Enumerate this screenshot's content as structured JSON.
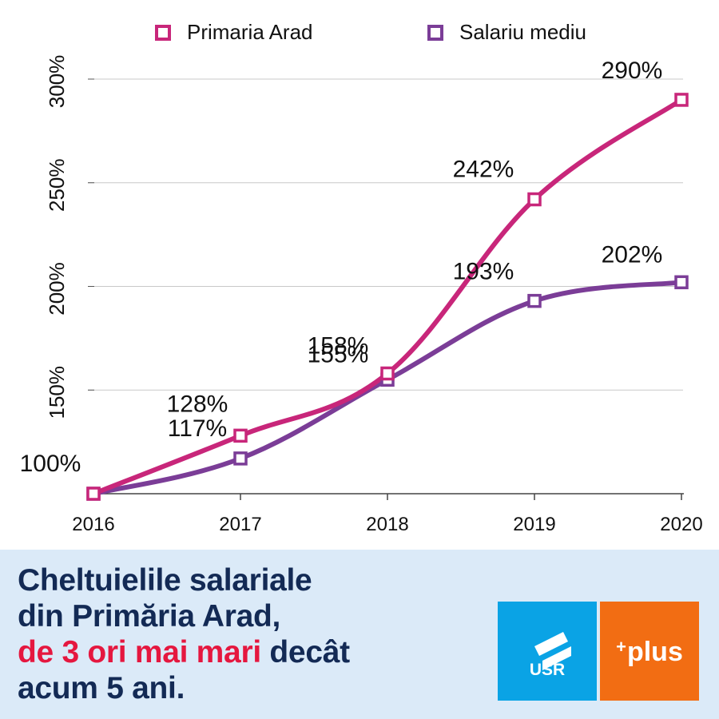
{
  "chart_data": {
    "type": "line",
    "x": [
      "2016",
      "2017",
      "2018",
      "2019",
      "2020"
    ],
    "series": [
      {
        "name": "Primaria Arad",
        "values": [
          100,
          128,
          158,
          242,
          290
        ],
        "labels": [
          "100%",
          "128%",
          "158%",
          "242%",
          "290%"
        ],
        "color": "#c8267a"
      },
      {
        "name": "Salariu mediu",
        "values": [
          100,
          117,
          155,
          193,
          202
        ],
        "labels": [
          "100%",
          "117%",
          "155%",
          "193%",
          "202%"
        ],
        "color": "#7b3d97"
      }
    ],
    "ylim": [
      100,
      300
    ],
    "yticks": [
      150,
      200,
      250,
      300
    ],
    "ytick_labels": [
      "150%",
      "200%",
      "250%",
      "300%"
    ],
    "grid": true,
    "legend": "top"
  },
  "headline": {
    "line1": "Cheltuielile salariale",
    "line2": "din Primăria Arad,",
    "highlight": "de 3 ori mai mari",
    "line3_rest": " decât",
    "line4": "acum 5 ani."
  },
  "logos": {
    "usr": "USR",
    "plus_sup": "+",
    "plus_word": "plus",
    "usr_color": "#0aa3e5",
    "plus_color": "#f26d13"
  }
}
